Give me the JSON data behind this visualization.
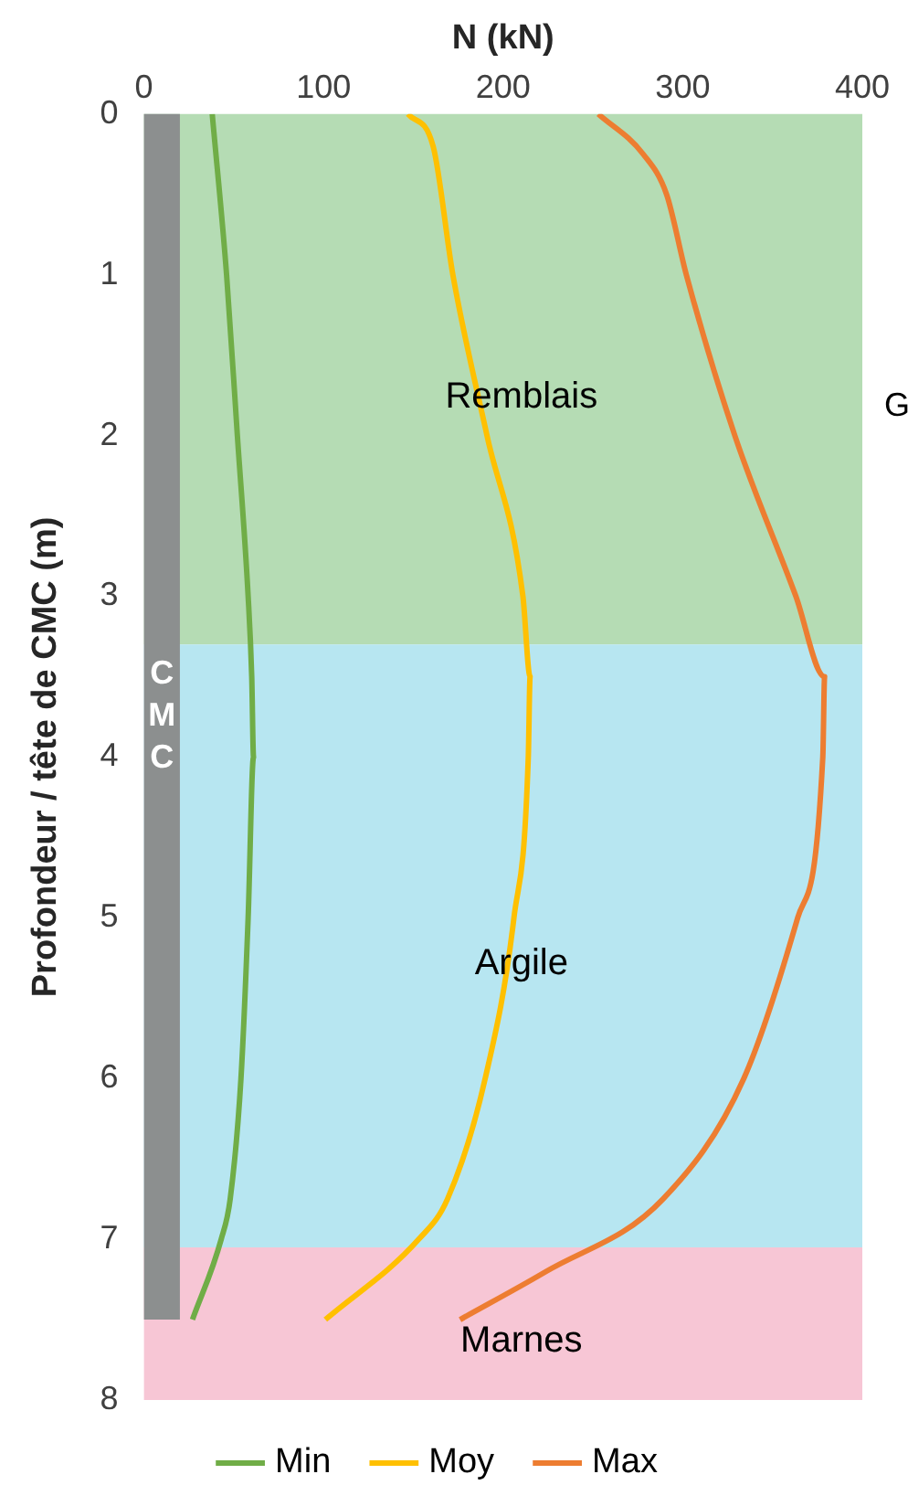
{
  "chart_data": {
    "type": "line",
    "xlabel": "N (kN)",
    "ylabel": "Profondeur / tête de CMC (m)",
    "xlim": [
      0,
      400
    ],
    "xticks": [
      0,
      100,
      200,
      300,
      400
    ],
    "ylim": [
      8,
      0
    ],
    "yticks": [
      0,
      1,
      2,
      3,
      4,
      5,
      6,
      7,
      8
    ],
    "grid": false,
    "legend": "bottom",
    "marker": "none",
    "line_style": "solid",
    "bands": [
      {
        "axis": "y",
        "from": 0,
        "to": 3.3,
        "label": "Remblais",
        "color": "#b5dcb4"
      },
      {
        "axis": "y",
        "from": 3.3,
        "to": 7.05,
        "label": "Argile",
        "color": "#b7e6f1"
      },
      {
        "axis": "y",
        "from": 7.05,
        "to": 8,
        "label": "Marnes",
        "color": "#f7c6d5"
      },
      {
        "axis": "x",
        "from": 0,
        "to": 20,
        "label": "CMC",
        "color": "#8c8f8f"
      }
    ],
    "annotations": [
      "G"
    ],
    "series": [
      {
        "name": "Min",
        "color": "#70ad47",
        "x": [
          38,
          46,
          52,
          58,
          60,
          61,
          58,
          54,
          48,
          43,
          27
        ],
        "values": [
          0,
          1,
          2,
          3,
          3.5,
          4,
          5,
          6,
          6.75,
          7,
          7.5
        ]
      },
      {
        "name": "Moy",
        "color": "#ffc000",
        "x": [
          147,
          161,
          172,
          191,
          211,
          215,
          214,
          206,
          190,
          169,
          153,
          101
        ],
        "values": [
          0,
          0.2,
          1,
          2,
          3,
          3.5,
          4,
          5,
          6,
          6.75,
          7,
          7.5
        ]
      },
      {
        "name": "Max",
        "color": "#ed7d31",
        "x": [
          253,
          278,
          291,
          302,
          329,
          363,
          379,
          378,
          364,
          334,
          289,
          224,
          176
        ],
        "values": [
          0,
          0.25,
          0.5,
          1,
          2,
          3,
          3.5,
          4,
          5,
          6,
          6.75,
          7.2,
          7.5
        ]
      }
    ]
  }
}
